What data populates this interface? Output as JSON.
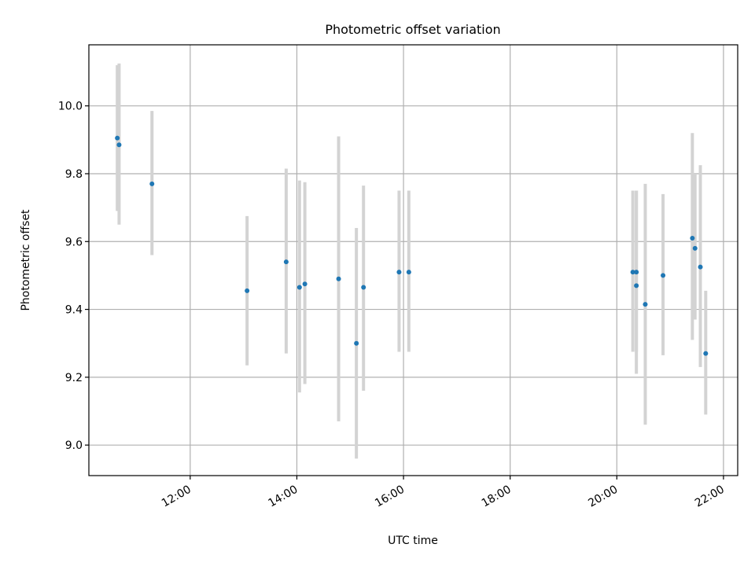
{
  "chart_data": {
    "type": "scatter",
    "title": "Photometric offset variation",
    "xlabel": "UTC time",
    "ylabel": "Photometric offset",
    "xlim": [
      "10:06",
      "22:16"
    ],
    "ylim": [
      8.91,
      10.18
    ],
    "x_ticks": [
      "12:00",
      "14:00",
      "16:00",
      "18:00",
      "20:00",
      "22:00"
    ],
    "y_ticks": [
      9.0,
      9.2,
      9.4,
      9.6,
      9.8,
      10.0
    ],
    "y_tick_labels": [
      "9.0",
      "9.2",
      "9.4",
      "9.6",
      "9.8",
      "10.0"
    ],
    "grid": true,
    "legend": "none",
    "colors": {
      "marker": "#1f77b4",
      "errorbar": "#d3d3d3",
      "grid": "#b0b0b0"
    },
    "points": [
      {
        "x": "10:38",
        "y": 9.905,
        "ylow": 9.69,
        "yhigh": 10.12
      },
      {
        "x": "10:40",
        "y": 9.885,
        "ylow": 9.65,
        "yhigh": 10.125
      },
      {
        "x": "11:17",
        "y": 9.77,
        "ylow": 9.56,
        "yhigh": 9.985
      },
      {
        "x": "13:04",
        "y": 9.455,
        "ylow": 9.235,
        "yhigh": 9.675
      },
      {
        "x": "13:48",
        "y": 9.54,
        "ylow": 9.27,
        "yhigh": 9.815
      },
      {
        "x": "14:03",
        "y": 9.465,
        "ylow": 9.155,
        "yhigh": 9.78
      },
      {
        "x": "14:09",
        "y": 9.475,
        "ylow": 9.18,
        "yhigh": 9.775
      },
      {
        "x": "14:47",
        "y": 9.49,
        "ylow": 9.07,
        "yhigh": 9.91
      },
      {
        "x": "15:07",
        "y": 9.3,
        "ylow": 8.96,
        "yhigh": 9.64
      },
      {
        "x": "15:15",
        "y": 9.465,
        "ylow": 9.16,
        "yhigh": 9.765
      },
      {
        "x": "15:55",
        "y": 9.51,
        "ylow": 9.275,
        "yhigh": 9.75
      },
      {
        "x": "16:06",
        "y": 9.51,
        "ylow": 9.275,
        "yhigh": 9.75
      },
      {
        "x": "20:18",
        "y": 9.51,
        "ylow": 9.275,
        "yhigh": 9.75
      },
      {
        "x": "20:22",
        "y": 9.51,
        "ylow": 9.275,
        "yhigh": 9.75
      },
      {
        "x": "20:22",
        "y": 9.47,
        "ylow": 9.21,
        "yhigh": 9.75
      },
      {
        "x": "20:32",
        "y": 9.415,
        "ylow": 9.06,
        "yhigh": 9.77
      },
      {
        "x": "20:52",
        "y": 9.5,
        "ylow": 9.265,
        "yhigh": 9.74
      },
      {
        "x": "21:25",
        "y": 9.61,
        "ylow": 9.31,
        "yhigh": 9.92
      },
      {
        "x": "21:28",
        "y": 9.58,
        "ylow": 9.37,
        "yhigh": 9.8
      },
      {
        "x": "21:34",
        "y": 9.525,
        "ylow": 9.23,
        "yhigh": 9.825
      },
      {
        "x": "21:40",
        "y": 9.27,
        "ylow": 9.09,
        "yhigh": 9.455
      }
    ]
  }
}
